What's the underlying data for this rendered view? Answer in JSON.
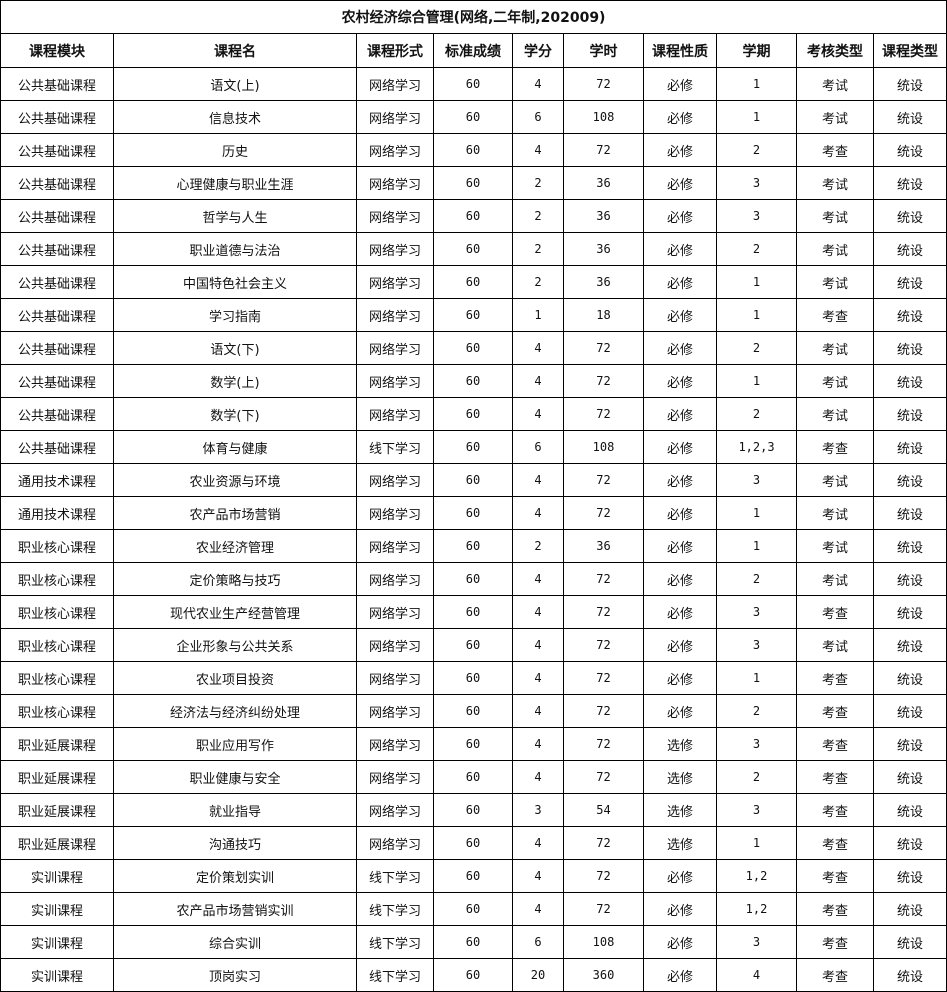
{
  "title": "农村经济综合管理(网络,二年制,202009)",
  "headers": [
    "课程模块",
    "课程名",
    "课程形式",
    "标准成绩",
    "学分",
    "学时",
    "课程性质",
    "学期",
    "考核类型",
    "课程类型"
  ],
  "rows": [
    [
      "公共基础课程",
      "语文(上)",
      "网络学习",
      "60",
      "4",
      "72",
      "必修",
      "1",
      "考试",
      "统设"
    ],
    [
      "公共基础课程",
      "信息技术",
      "网络学习",
      "60",
      "6",
      "108",
      "必修",
      "1",
      "考试",
      "统设"
    ],
    [
      "公共基础课程",
      "历史",
      "网络学习",
      "60",
      "4",
      "72",
      "必修",
      "2",
      "考查",
      "统设"
    ],
    [
      "公共基础课程",
      "心理健康与职业生涯",
      "网络学习",
      "60",
      "2",
      "36",
      "必修",
      "3",
      "考试",
      "统设"
    ],
    [
      "公共基础课程",
      "哲学与人生",
      "网络学习",
      "60",
      "2",
      "36",
      "必修",
      "3",
      "考试",
      "统设"
    ],
    [
      "公共基础课程",
      "职业道德与法治",
      "网络学习",
      "60",
      "2",
      "36",
      "必修",
      "2",
      "考试",
      "统设"
    ],
    [
      "公共基础课程",
      "中国特色社会主义",
      "网络学习",
      "60",
      "2",
      "36",
      "必修",
      "1",
      "考试",
      "统设"
    ],
    [
      "公共基础课程",
      "学习指南",
      "网络学习",
      "60",
      "1",
      "18",
      "必修",
      "1",
      "考查",
      "统设"
    ],
    [
      "公共基础课程",
      "语文(下)",
      "网络学习",
      "60",
      "4",
      "72",
      "必修",
      "2",
      "考试",
      "统设"
    ],
    [
      "公共基础课程",
      "数学(上)",
      "网络学习",
      "60",
      "4",
      "72",
      "必修",
      "1",
      "考试",
      "统设"
    ],
    [
      "公共基础课程",
      "数学(下)",
      "网络学习",
      "60",
      "4",
      "72",
      "必修",
      "2",
      "考试",
      "统设"
    ],
    [
      "公共基础课程",
      "体育与健康",
      "线下学习",
      "60",
      "6",
      "108",
      "必修",
      "1,2,3",
      "考查",
      "统设"
    ],
    [
      "通用技术课程",
      "农业资源与环境",
      "网络学习",
      "60",
      "4",
      "72",
      "必修",
      "3",
      "考试",
      "统设"
    ],
    [
      "通用技术课程",
      "农产品市场营销",
      "网络学习",
      "60",
      "4",
      "72",
      "必修",
      "1",
      "考试",
      "统设"
    ],
    [
      "职业核心课程",
      "农业经济管理",
      "网络学习",
      "60",
      "2",
      "36",
      "必修",
      "1",
      "考试",
      "统设"
    ],
    [
      "职业核心课程",
      "定价策略与技巧",
      "网络学习",
      "60",
      "4",
      "72",
      "必修",
      "2",
      "考试",
      "统设"
    ],
    [
      "职业核心课程",
      "现代农业生产经营管理",
      "网络学习",
      "60",
      "4",
      "72",
      "必修",
      "3",
      "考查",
      "统设"
    ],
    [
      "职业核心课程",
      "企业形象与公共关系",
      "网络学习",
      "60",
      "4",
      "72",
      "必修",
      "3",
      "考试",
      "统设"
    ],
    [
      "职业核心课程",
      "农业项目投资",
      "网络学习",
      "60",
      "4",
      "72",
      "必修",
      "1",
      "考查",
      "统设"
    ],
    [
      "职业核心课程",
      "经济法与经济纠纷处理",
      "网络学习",
      "60",
      "4",
      "72",
      "必修",
      "2",
      "考查",
      "统设"
    ],
    [
      "职业延展课程",
      "职业应用写作",
      "网络学习",
      "60",
      "4",
      "72",
      "选修",
      "3",
      "考查",
      "统设"
    ],
    [
      "职业延展课程",
      "职业健康与安全",
      "网络学习",
      "60",
      "4",
      "72",
      "选修",
      "2",
      "考查",
      "统设"
    ],
    [
      "职业延展课程",
      "就业指导",
      "网络学习",
      "60",
      "3",
      "54",
      "选修",
      "3",
      "考查",
      "统设"
    ],
    [
      "职业延展课程",
      "沟通技巧",
      "网络学习",
      "60",
      "4",
      "72",
      "选修",
      "1",
      "考查",
      "统设"
    ],
    [
      "实训课程",
      "定价策划实训",
      "线下学习",
      "60",
      "4",
      "72",
      "必修",
      "1,2",
      "考查",
      "统设"
    ],
    [
      "实训课程",
      "农产品市场营销实训",
      "线下学习",
      "60",
      "4",
      "72",
      "必修",
      "1,2",
      "考查",
      "统设"
    ],
    [
      "实训课程",
      "综合实训",
      "线下学习",
      "60",
      "6",
      "108",
      "必修",
      "3",
      "考查",
      "统设"
    ],
    [
      "实训课程",
      "顶岗实习",
      "线下学习",
      "60",
      "20",
      "360",
      "必修",
      "4",
      "考查",
      "统设"
    ]
  ]
}
